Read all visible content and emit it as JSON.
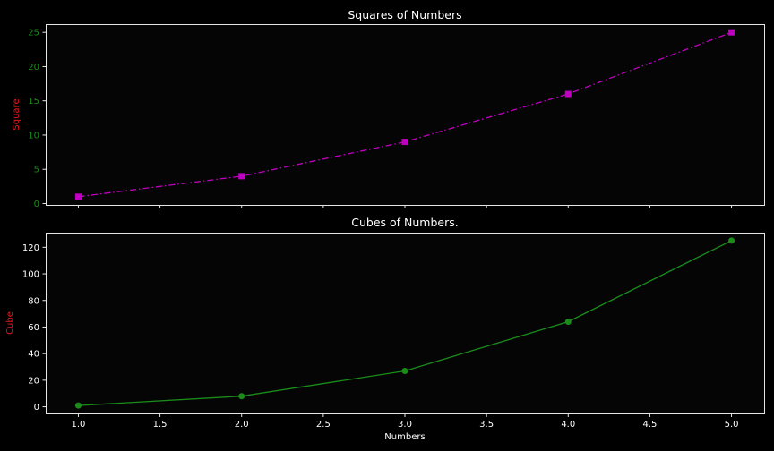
{
  "chart_data": [
    {
      "type": "line",
      "title": "Squares of Numbers",
      "xlabel": "",
      "ylabel": "Square",
      "x": [
        1.0,
        2.0,
        3.0,
        4.0,
        5.0
      ],
      "series": [
        {
          "values": [
            1,
            4,
            9,
            16,
            25
          ],
          "color": "#c000c0",
          "line_style": "dash-dot",
          "marker": "square"
        }
      ],
      "xlim": [
        0.8,
        5.2
      ],
      "ylim": [
        -0.2,
        26.2
      ],
      "xticks": [
        1.0,
        1.5,
        2.0,
        2.5,
        3.0,
        3.5,
        4.0,
        4.5,
        5.0
      ],
      "xtick_labels_shown": false,
      "yticks": [
        0,
        5,
        10,
        15,
        20,
        25
      ],
      "ytick_labels": [
        "0",
        "5",
        "10",
        "15",
        "20",
        "25"
      ],
      "ytick_color": "#1a8c1a",
      "ylabel_color": "#e8161c",
      "grid": false
    },
    {
      "type": "line",
      "title": "Cubes of Numbers.",
      "xlabel": "Numbers",
      "ylabel": "Cube",
      "x": [
        1.0,
        2.0,
        3.0,
        4.0,
        5.0
      ],
      "series": [
        {
          "values": [
            1,
            8,
            27,
            64,
            125
          ],
          "color": "#1a8c1a",
          "line_style": "solid",
          "marker": "circle"
        }
      ],
      "xlim": [
        0.8,
        5.2
      ],
      "ylim": [
        -5.0,
        131.0
      ],
      "xticks": [
        1.0,
        1.5,
        2.0,
        2.5,
        3.0,
        3.5,
        4.0,
        4.5,
        5.0
      ],
      "xtick_labels": [
        "1.0",
        "1.5",
        "2.0",
        "2.5",
        "3.0",
        "3.5",
        "4.0",
        "4.5",
        "5.0"
      ],
      "yticks": [
        0,
        20,
        40,
        60,
        80,
        100,
        120
      ],
      "ytick_labels": [
        "0",
        "20",
        "40",
        "60",
        "80",
        "100",
        "120"
      ],
      "ytick_color": "#ffffff",
      "ylabel_color": "#e8161c",
      "grid": false
    }
  ],
  "colors": {
    "background": "#000000",
    "axes_face": "#050505",
    "frame": "#e6e6e6",
    "text": "#ffffff"
  }
}
